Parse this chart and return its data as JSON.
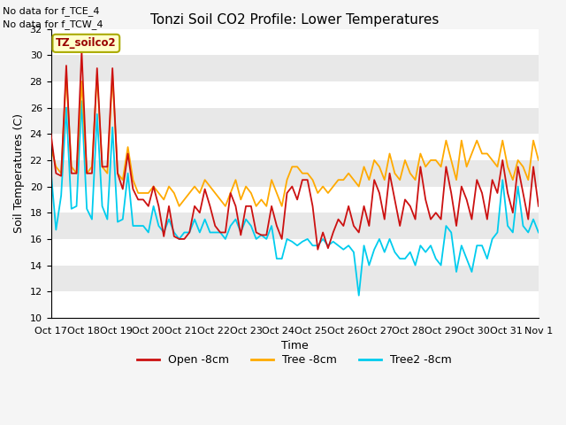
{
  "title": "Tonzi Soil CO2 Profile: Lower Temperatures",
  "xlabel": "Time",
  "ylabel": "Soil Temperatures (C)",
  "annotations": [
    "No data for f_TCE_4",
    "No data for f_TCW_4"
  ],
  "legend_label": "TZ_soilco2",
  "series_labels": [
    "Open -8cm",
    "Tree -8cm",
    "Tree2 -8cm"
  ],
  "series_colors": [
    "#cc1111",
    "#ffaa00",
    "#00ccee"
  ],
  "ylim": [
    10,
    32
  ],
  "bg_color_light": "#e8e8e8",
  "bg_color_dark": "#d4d4d4",
  "grid_color": "#ffffff",
  "fig_bg": "#f5f5f5",
  "xtick_labels": [
    "Oct 17",
    "Oct 18",
    "Oct 19",
    "Oct 20",
    "Oct 21",
    "Oct 22",
    "Oct 23",
    "Oct 24",
    "Oct 25",
    "Oct 26",
    "Oct 27",
    "Oct 28",
    "Oct 29",
    "Oct 30",
    "Oct 31",
    "Nov 1"
  ],
  "open_8cm": [
    24.0,
    21.0,
    20.8,
    29.2,
    21.0,
    21.0,
    30.3,
    21.0,
    21.0,
    29.0,
    21.5,
    21.5,
    29.0,
    21.0,
    19.8,
    22.5,
    19.8,
    19.0,
    19.0,
    18.5,
    20.0,
    18.5,
    16.2,
    18.5,
    16.2,
    16.0,
    16.0,
    16.5,
    18.5,
    18.0,
    19.8,
    18.5,
    17.0,
    16.5,
    16.5,
    19.5,
    18.5,
    16.3,
    18.5,
    18.5,
    16.5,
    16.3,
    16.3,
    18.5,
    17.0,
    16.0,
    19.5,
    20.0,
    19.0,
    20.5,
    20.5,
    18.5,
    15.2,
    16.5,
    15.3,
    16.5,
    17.5,
    17.0,
    18.5,
    17.0,
    16.5,
    18.5,
    17.0,
    20.5,
    19.5,
    17.5,
    21.0,
    19.0,
    17.0,
    19.0,
    18.5,
    17.5,
    21.5,
    19.0,
    17.5,
    18.0,
    17.5,
    21.5,
    19.5,
    17.0,
    20.0,
    19.0,
    17.5,
    20.5,
    19.5,
    17.5,
    20.5,
    19.5,
    22.0,
    19.5,
    18.0,
    21.5,
    19.5,
    17.5,
    21.5,
    18.5
  ],
  "tree_8cm": [
    23.0,
    21.5,
    21.0,
    28.5,
    21.5,
    21.0,
    28.0,
    21.0,
    21.5,
    28.5,
    21.5,
    21.0,
    28.5,
    21.0,
    20.5,
    23.0,
    20.5,
    19.5,
    19.5,
    19.5,
    20.0,
    19.5,
    19.0,
    20.0,
    19.5,
    18.5,
    19.0,
    19.5,
    20.0,
    19.5,
    20.5,
    20.0,
    19.5,
    19.0,
    18.5,
    19.5,
    20.5,
    19.0,
    20.0,
    19.5,
    18.5,
    19.0,
    18.5,
    20.5,
    19.5,
    18.5,
    20.5,
    21.5,
    21.5,
    21.0,
    21.0,
    20.5,
    19.5,
    20.0,
    19.5,
    20.0,
    20.5,
    20.5,
    21.0,
    20.5,
    20.0,
    21.5,
    20.5,
    22.0,
    21.5,
    20.5,
    22.5,
    21.0,
    20.5,
    22.0,
    21.0,
    20.5,
    22.5,
    21.5,
    22.0,
    22.0,
    21.5,
    23.5,
    22.0,
    20.5,
    23.5,
    21.5,
    22.5,
    23.5,
    22.5,
    22.5,
    22.0,
    21.5,
    23.5,
    21.5,
    20.5,
    22.0,
    21.5,
    20.5,
    23.5,
    22.0
  ],
  "tree2_8cm": [
    21.2,
    16.7,
    19.3,
    26.0,
    18.3,
    18.5,
    26.5,
    18.3,
    17.5,
    25.5,
    18.5,
    17.5,
    24.5,
    17.3,
    17.5,
    21.0,
    17.0,
    17.0,
    17.0,
    16.5,
    18.5,
    17.0,
    16.5,
    17.5,
    16.5,
    16.0,
    16.5,
    16.5,
    17.5,
    16.5,
    17.5,
    16.5,
    16.5,
    16.5,
    16.0,
    17.0,
    17.5,
    16.5,
    17.5,
    17.0,
    16.0,
    16.3,
    16.0,
    17.0,
    14.5,
    14.5,
    16.0,
    15.8,
    15.5,
    15.8,
    16.0,
    15.5,
    15.5,
    16.0,
    15.5,
    15.8,
    15.5,
    15.2,
    15.5,
    15.0,
    11.7,
    15.5,
    14.0,
    15.2,
    16.0,
    15.0,
    16.0,
    15.0,
    14.5,
    14.5,
    15.0,
    14.0,
    15.5,
    15.0,
    15.5,
    14.5,
    14.0,
    17.0,
    16.5,
    13.5,
    15.5,
    14.5,
    13.5,
    15.5,
    15.5,
    14.5,
    16.0,
    16.5,
    20.5,
    17.0,
    16.5,
    20.0,
    17.0,
    16.5,
    17.5,
    16.5
  ]
}
